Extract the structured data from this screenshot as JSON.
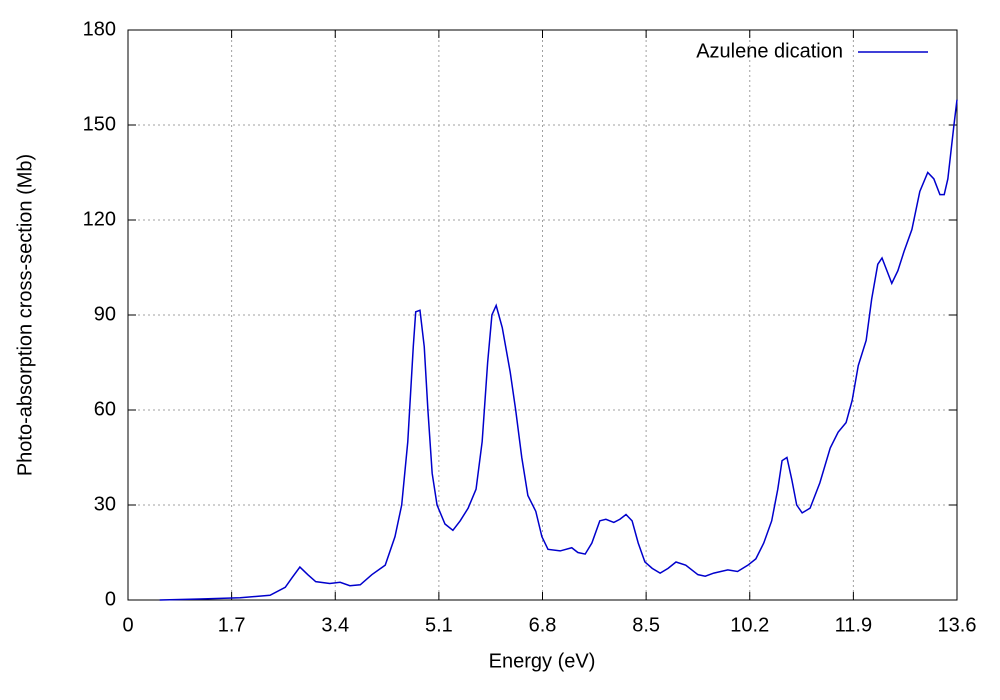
{
  "chart_data": {
    "type": "line",
    "xlabel": "Energy (eV)",
    "ylabel": "Photo-absorption cross-section (Mb)",
    "xlim": [
      0,
      13.6
    ],
    "ylim": [
      0,
      180
    ],
    "xticks": [
      0,
      1.7,
      3.4,
      5.1,
      6.8,
      8.5,
      10.2,
      11.9,
      13.6
    ],
    "yticks": [
      0,
      30,
      60,
      90,
      120,
      150,
      180
    ],
    "grid": true,
    "legend": "top-right",
    "series": [
      {
        "name": "Azulene dication",
        "color": "#0000cc",
        "x": [
          0.52,
          1.18,
          1.84,
          2.33,
          2.58,
          2.69,
          2.82,
          2.95,
          3.08,
          3.31,
          3.48,
          3.64,
          3.81,
          4.0,
          4.22,
          4.38,
          4.49,
          4.59,
          4.68,
          4.72,
          4.79,
          4.86,
          4.92,
          4.99,
          5.07,
          5.2,
          5.33,
          5.45,
          5.58,
          5.71,
          5.81,
          5.9,
          5.97,
          6.04,
          6.14,
          6.27,
          6.36,
          6.46,
          6.56,
          6.69,
          6.79,
          6.89,
          7.09,
          7.28,
          7.38,
          7.5,
          7.61,
          7.74,
          7.84,
          7.97,
          8.07,
          8.17,
          8.27,
          8.37,
          8.48,
          8.6,
          8.73,
          8.86,
          8.99,
          9.15,
          9.35,
          9.47,
          9.61,
          9.84,
          10.0,
          10.17,
          10.3,
          10.43,
          10.56,
          10.66,
          10.73,
          10.81,
          10.89,
          10.97,
          11.06,
          11.19,
          11.35,
          11.52,
          11.65,
          11.78,
          11.88,
          11.98,
          12.11,
          12.2,
          12.3,
          12.37,
          12.43,
          12.53,
          12.63,
          12.73,
          12.86,
          12.99,
          13.12,
          13.22,
          13.32,
          13.39,
          13.45,
          13.55,
          13.6
        ],
        "values": [
          0,
          0.3,
          0.7,
          1.5,
          4,
          7,
          10.4,
          8,
          5.8,
          5.2,
          5.6,
          4.5,
          4.8,
          8,
          11,
          20,
          30,
          50,
          80,
          91,
          91.5,
          80,
          60,
          40,
          30,
          24,
          22,
          25,
          29,
          35,
          50,
          75,
          90,
          93,
          86,
          72,
          60,
          45,
          33,
          28,
          20,
          16,
          15.5,
          16.5,
          15,
          14.5,
          18,
          25,
          25.5,
          24.5,
          25.5,
          27,
          25,
          18,
          12,
          10,
          8.5,
          10,
          12,
          11,
          8,
          7.5,
          8.5,
          9.5,
          9,
          11,
          13,
          18,
          25,
          35,
          44,
          45,
          38,
          30,
          27.5,
          29,
          37,
          48,
          53,
          56,
          63,
          74,
          82,
          95,
          106,
          108,
          105,
          100,
          104,
          110,
          117,
          129,
          135,
          133,
          128,
          128,
          133,
          150,
          158
        ]
      }
    ]
  }
}
